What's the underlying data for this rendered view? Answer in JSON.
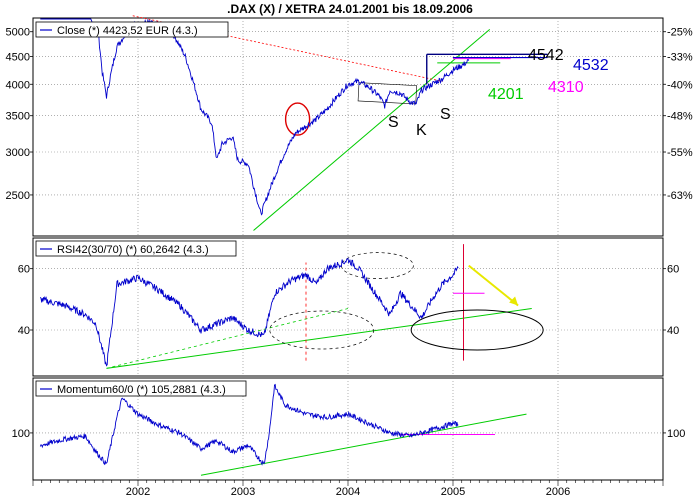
{
  "title": ".DAX (X) / XETRA 24.01.2001 bis 18.09.2006",
  "x_tick_labels": [
    "2002",
    "2003",
    "2004",
    "2005",
    "2006"
  ],
  "chart_data": [
    {
      "type": "line",
      "panel": "price",
      "legend": "Close (*) 4423,52 EUR (4.3.)",
      "y_scale": "log",
      "ylim": [
        2100,
        5300
      ],
      "y_ticks_left": [
        "5000",
        "4500",
        "4000",
        "3500",
        "3000",
        "2500"
      ],
      "y_ticks_right": [
        "-25%",
        "-33%",
        "-40%",
        "-48%",
        "-55%",
        "-63%"
      ],
      "series": [
        {
          "name": "Close (*) 4423,52 EUR (4.3.)",
          "color": "#0000cc",
          "x": [
            2001.07,
            2001.2,
            2001.35,
            2001.5,
            2001.62,
            2001.66,
            2001.7,
            2001.8,
            2001.95,
            2002.1,
            2002.25,
            2002.35,
            2002.45,
            2002.55,
            2002.6,
            2002.7,
            2002.75,
            2002.8,
            2002.9,
            2002.95,
            2003.05,
            2003.1,
            2003.17,
            2003.22,
            2003.3,
            2003.4,
            2003.5,
            2003.6,
            2003.7,
            2003.8,
            2003.9,
            2004.0,
            2004.1,
            2004.2,
            2004.3,
            2004.35,
            2004.4,
            2004.5,
            2004.6,
            2004.65,
            2004.7,
            2004.8,
            2004.9,
            2005.0,
            2005.1,
            2005.15
          ],
          "y": [
            6200,
            5900,
            5700,
            5400,
            5000,
            4200,
            3800,
            4700,
            5150,
            5200,
            5100,
            4900,
            4500,
            3900,
            3600,
            3400,
            2900,
            3100,
            3200,
            2900,
            2850,
            2600,
            2300,
            2450,
            2700,
            3000,
            3250,
            3350,
            3450,
            3600,
            3800,
            4000,
            4050,
            3950,
            3800,
            3650,
            3900,
            3850,
            3700,
            3680,
            3900,
            4000,
            4100,
            4250,
            4350,
            4423
          ]
        }
      ],
      "annotations": [
        "S",
        "K",
        "S",
        "4542",
        "4532",
        "4310",
        "4201"
      ],
      "annotation_colors": {
        "4542": "#000000",
        "4532": "#0000cc",
        "4310": "#ff00ff",
        "4201": "#00cc00"
      }
    },
    {
      "type": "line",
      "panel": "rsi",
      "legend": "RSI42(30/70) (*) 60,2642 (4.3.)",
      "ylim": [
        25,
        70
      ],
      "y_ticks_left": [
        "60",
        "40"
      ],
      "y_ticks_right": [
        "60",
        "40"
      ],
      "series": [
        {
          "name": "RSI42(30/70) (*) 60,2642 (4.3.)",
          "color": "#0000cc",
          "x": [
            2001.07,
            2001.3,
            2001.5,
            2001.6,
            2001.7,
            2001.8,
            2002.0,
            2002.2,
            2002.4,
            2002.6,
            2002.75,
            2002.9,
            2003.05,
            2003.2,
            2003.3,
            2003.45,
            2003.6,
            2003.7,
            2003.8,
            2003.95,
            2004.0,
            2004.1,
            2004.2,
            2004.3,
            2004.4,
            2004.5,
            2004.6,
            2004.7,
            2004.8,
            2004.9,
            2005.0,
            2005.05
          ],
          "y": [
            50,
            48,
            45,
            42,
            28,
            55,
            57,
            53,
            48,
            40,
            42,
            44,
            40,
            38,
            52,
            56,
            58,
            55,
            60,
            62,
            63,
            60,
            55,
            50,
            45,
            52,
            48,
            44,
            50,
            55,
            58,
            60.26
          ]
        }
      ]
    },
    {
      "type": "line",
      "panel": "momentum",
      "legend": "Momentum60/0 (*) 105,2881 (4.3.)",
      "ylim": [
        70,
        135
      ],
      "y_ticks_left": [
        "100"
      ],
      "y_ticks_right": [
        "100"
      ],
      "series": [
        {
          "name": "Momentum60/0 (*) 105,2881 (4.3.)",
          "color": "#0000cc",
          "x": [
            2001.07,
            2001.3,
            2001.5,
            2001.6,
            2001.7,
            2001.8,
            2001.85,
            2002.0,
            2002.2,
            2002.4,
            2002.6,
            2002.75,
            2002.9,
            2003.05,
            2003.2,
            2003.25,
            2003.3,
            2003.4,
            2003.6,
            2003.8,
            2004.0,
            2004.2,
            2004.4,
            2004.6,
            2004.8,
            2005.0,
            2005.05
          ],
          "y": [
            92,
            96,
            98,
            88,
            80,
            110,
            122,
            112,
            105,
            100,
            90,
            95,
            88,
            92,
            80,
            100,
            130,
            118,
            112,
            110,
            112,
            106,
            100,
            98,
            102,
            106,
            105.29
          ]
        }
      ]
    }
  ]
}
